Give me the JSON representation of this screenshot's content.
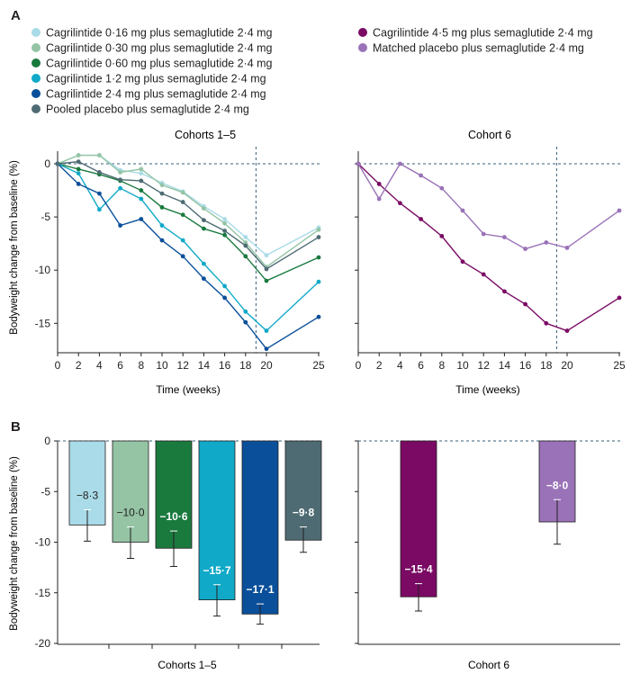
{
  "panels": {
    "a": "A",
    "b": "B"
  },
  "legend": [
    {
      "key": "c016",
      "label": "Cagrilintide 0·16 mg plus semaglutide 2·4 mg",
      "color": "#a9dbe8"
    },
    {
      "key": "c030",
      "label": "Cagrilintide 0·30 mg plus semaglutide 2·4 mg",
      "color": "#94c4a4"
    },
    {
      "key": "c060",
      "label": "Cagrilintide 0·60 mg plus semaglutide 2·4 mg",
      "color": "#1a7a3e"
    },
    {
      "key": "c12",
      "label": "Cagrilintide 1·2 mg plus semaglutide 2·4 mg",
      "color": "#10a9c8"
    },
    {
      "key": "c24",
      "label": "Cagrilintide 2·4 mg plus semaglutide 2·4 mg",
      "color": "#0a4f9a"
    },
    {
      "key": "pooled",
      "label": "Pooled placebo plus semaglutide 2·4 mg",
      "color": "#4e6b73"
    },
    {
      "key": "c45",
      "label": "Cagrilintide 4·5 mg plus semaglutide 2·4 mg",
      "color": "#7a0a64"
    },
    {
      "key": "matched",
      "label": "Matched placebo plus semaglutide 2·4 mg",
      "color": "#9a72b8"
    }
  ],
  "chart_data": [
    {
      "type": "line",
      "panel": "A",
      "title": "Cohorts 1–5",
      "xlabel": "Time (weeks)",
      "ylabel": "Bodyweight change from baseline (%)",
      "x": [
        0,
        2,
        4,
        6,
        8,
        10,
        12,
        14,
        16,
        18,
        20,
        25
      ],
      "xticks": [
        "0",
        "2",
        "4",
        "6",
        "8",
        "10",
        "12",
        "14",
        "16",
        "18",
        "20",
        "25"
      ],
      "yticks": [
        "0",
        "-5",
        "-10",
        "-15"
      ],
      "xlim": [
        0,
        25
      ],
      "ylim": [
        -17.5,
        0.8
      ],
      "reference_line_week": 19,
      "series": [
        {
          "key": "c016",
          "name": "Cagrilintide 0·16 mg plus semaglutide 2·4 mg",
          "values": [
            0,
            0.8,
            0.8,
            -0.6,
            -0.9,
            -1.8,
            -2.6,
            -4.0,
            -5.2,
            -6.9,
            -8.6,
            -6.0
          ]
        },
        {
          "key": "c030",
          "name": "Cagrilintide 0·30 mg plus semaglutide 2·4 mg",
          "values": [
            0,
            0.8,
            0.8,
            -0.8,
            -0.5,
            -2.0,
            -2.7,
            -4.2,
            -5.6,
            -7.4,
            -9.7,
            -6.2
          ]
        },
        {
          "key": "c060",
          "name": "Cagrilintide 0·60 mg plus semaglutide 2·4 mg",
          "values": [
            0,
            -0.5,
            -1.0,
            -1.6,
            -2.5,
            -4.1,
            -4.8,
            -6.1,
            -6.7,
            -8.7,
            -11.0,
            -8.8
          ]
        },
        {
          "key": "c12",
          "name": "Cagrilintide 1·2 mg plus semaglutide 2·4 mg",
          "values": [
            0,
            -0.9,
            -4.3,
            -2.3,
            -3.3,
            -5.8,
            -7.2,
            -9.4,
            -11.5,
            -13.9,
            -15.7,
            -11.1
          ]
        },
        {
          "key": "c24",
          "name": "Cagrilintide 2·4 mg plus semaglutide 2·4 mg",
          "values": [
            0,
            -1.9,
            -2.8,
            -5.8,
            -5.2,
            -7.2,
            -8.7,
            -10.8,
            -12.6,
            -14.9,
            -17.4,
            -14.4
          ]
        },
        {
          "key": "pooled",
          "name": "Pooled placebo plus semaglutide 2·4 mg",
          "values": [
            0,
            0.2,
            -0.8,
            -1.5,
            -1.6,
            -2.8,
            -3.6,
            -5.3,
            -6.3,
            -7.7,
            -9.9,
            -6.9
          ]
        }
      ]
    },
    {
      "type": "line",
      "panel": "A",
      "title": "Cohort 6",
      "xlabel": "Time (weeks)",
      "x": [
        0,
        2,
        4,
        6,
        8,
        10,
        12,
        14,
        16,
        18,
        20,
        25
      ],
      "xticks": [
        "0",
        "2",
        "4",
        "6",
        "8",
        "10",
        "12",
        "14",
        "16",
        "18",
        "20",
        "25"
      ],
      "xlim": [
        0,
        25
      ],
      "ylim": [
        -17.5,
        0.8
      ],
      "reference_line_week": 19,
      "series": [
        {
          "key": "c45",
          "name": "Cagrilintide 4·5 mg plus semaglutide 2·4 mg",
          "values": [
            0,
            -1.9,
            -3.7,
            -5.2,
            -6.8,
            -9.2,
            -10.4,
            -12.0,
            -13.2,
            -15.0,
            -15.7,
            -12.6
          ]
        },
        {
          "key": "matched",
          "name": "Matched placebo plus semaglutide 2·4 mg",
          "values": [
            0,
            -3.3,
            0,
            -1.1,
            -2.3,
            -4.4,
            -6.6,
            -6.9,
            -8.0,
            -7.4,
            -7.9,
            -4.4
          ]
        }
      ]
    },
    {
      "type": "bar",
      "panel": "B",
      "title": "Cohorts 1–5",
      "xlabel": "Cohorts 1–5",
      "ylabel": "Bodyweight change from baseline (%)",
      "yticks": [
        "0",
        "-5",
        "-10",
        "-15",
        "-20"
      ],
      "ylim": [
        -20,
        0
      ],
      "bars": [
        {
          "key": "c016",
          "value": -8.3,
          "label": "−8·3",
          "err_low": -9.9,
          "err_high": -6.8
        },
        {
          "key": "c030",
          "value": -10.0,
          "label": "−10·0",
          "err_low": -11.6,
          "err_high": -8.5
        },
        {
          "key": "c060",
          "value": -10.6,
          "label": "−10·6",
          "err_low": -12.4,
          "err_high": -8.9
        },
        {
          "key": "c12",
          "value": -15.7,
          "label": "−15·7",
          "err_low": -17.3,
          "err_high": -14.2
        },
        {
          "key": "c24",
          "value": -17.1,
          "label": "−17·1",
          "err_low": -18.1,
          "err_high": -16.1
        },
        {
          "key": "pooled",
          "value": -9.8,
          "label": "−9·8",
          "err_low": -11.0,
          "err_high": -8.5
        }
      ]
    },
    {
      "type": "bar",
      "panel": "B",
      "title": "Cohort 6",
      "xlabel": "Cohort 6",
      "ylim": [
        -20,
        0
      ],
      "bars": [
        {
          "key": "c45",
          "value": -15.4,
          "label": "−15·4",
          "err_low": -16.8,
          "err_high": -14.1
        },
        {
          "key": "matched",
          "value": -8.0,
          "label": "−8·0",
          "err_low": -10.2,
          "err_high": -5.8
        }
      ]
    }
  ]
}
